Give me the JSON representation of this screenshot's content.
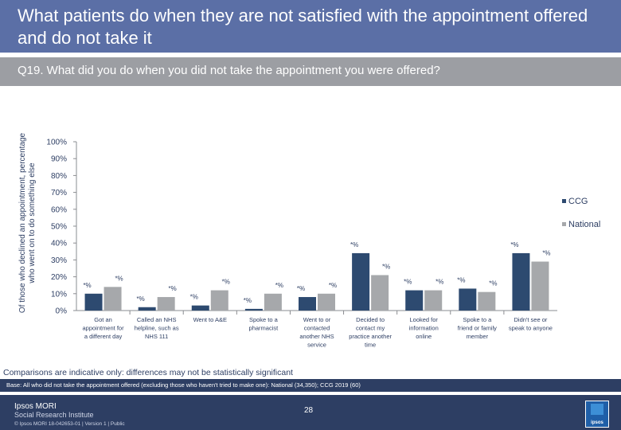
{
  "header": {
    "title": "What patients do when they are not satisfied with the appointment offered and do not take it",
    "question": "Q19. What did you do when you did not take the appointment you were offered?"
  },
  "chart_data": {
    "type": "bar",
    "ylabel": "Of those who declined an appointment, percentage who went on to do something else",
    "ylim": [
      0,
      100
    ],
    "yticks": [
      "0%",
      "10%",
      "20%",
      "30%",
      "40%",
      "50%",
      "60%",
      "70%",
      "80%",
      "90%",
      "100%"
    ],
    "categories": [
      [
        "Got an",
        "appointment for",
        "a different day"
      ],
      [
        "Called an NHS",
        "helpline, such as",
        "NHS 111"
      ],
      [
        "Went to A&E"
      ],
      [
        "Spoke to a",
        "pharmacist"
      ],
      [
        "Went to or",
        "contacted",
        "another NHS",
        "service"
      ],
      [
        "Decided to",
        "contact my",
        "practice another",
        "time"
      ],
      [
        "Looked for",
        "information",
        "online"
      ],
      [
        "Spoke to a",
        "friend or family",
        "member"
      ],
      [
        "Didn't see or",
        "speak to anyone"
      ]
    ],
    "series": [
      {
        "name": "CCG",
        "color": "#2d4a70",
        "values": [
          10,
          2,
          3,
          1,
          8,
          34,
          12,
          13,
          34
        ],
        "labels": [
          "*%",
          "*%",
          "*%",
          "*%",
          "*%",
          "*%",
          "*%",
          "*%",
          "*%"
        ]
      },
      {
        "name": "National",
        "color": "#a6a8ab",
        "values": [
          14,
          8,
          12,
          10,
          10,
          21,
          12,
          11,
          29
        ],
        "labels": [
          "*%",
          "*%",
          "*%",
          "*%",
          "*%",
          "*%",
          "*%",
          "*%",
          "*%"
        ]
      }
    ],
    "legend_position": "right"
  },
  "note": "Comparisons are indicative only: differences may not be statistically significant",
  "base": "Base: All who did not take the appointment offered (excluding those who haven't tried to make one): National (34,350); CCG 2019 (60)",
  "footer": {
    "logo_line1": "Ipsos MORI",
    "logo_line2": "Social Research Institute",
    "page_number": "28",
    "copyright": "© Ipsos MORI     18-042653-01 | Version 1 | Public",
    "badge_text": "ipsos"
  }
}
